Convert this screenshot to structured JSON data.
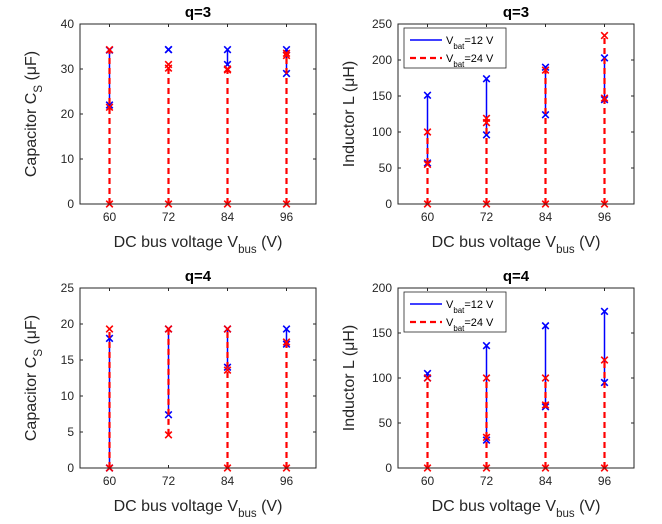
{
  "chart_data": [
    {
      "type": "range",
      "title": "q=3",
      "xlabel": {
        "main": "DC bus voltage V",
        "sub": "bus",
        "unit": " (V)"
      },
      "ylabel": {
        "main": "Capacitor C",
        "sub": "S",
        "unit": " (μF)"
      },
      "categories": [
        "60",
        "72",
        "84",
        "96"
      ],
      "ylim": [
        0,
        40
      ],
      "yticks": [
        0,
        10,
        20,
        30,
        40
      ],
      "legend": null,
      "series": [
        {
          "style": "solid",
          "color": "#0000ff",
          "ranges": [
            [
              22,
              34.2
            ],
            [
              34.3,
              34.3
            ],
            [
              31,
              34.3
            ],
            [
              29,
              34.3
            ]
          ]
        },
        {
          "style": "dashed",
          "color": "#ff0000",
          "ranges": [
            [
              0,
              34.3
            ],
            [
              0,
              31
            ],
            [
              0,
              30
            ],
            [
              0,
              33.5
            ]
          ],
          "extra_points": [
            [
              21.5
            ],
            [
              30.2
            ],
            [
              29.8
            ],
            [
              33
            ]
          ]
        }
      ]
    },
    {
      "type": "range",
      "title": "q=3",
      "xlabel": {
        "main": "DC bus voltage V",
        "sub": "bus",
        "unit": " (V)"
      },
      "ylabel": {
        "main": "Inductor L",
        "sub": "",
        "unit": " (μH)"
      },
      "categories": [
        "60",
        "72",
        "84",
        "96"
      ],
      "ylim": [
        0,
        250
      ],
      "yticks": [
        0,
        50,
        100,
        150,
        200,
        250
      ],
      "legend": {
        "position": "top-left",
        "entries": [
          {
            "main": "V",
            "sub": "bat",
            "rest": "=12 V",
            "style": "solid",
            "color": "#0000ff"
          },
          {
            "main": "V",
            "sub": "bat",
            "rest": "=24 V",
            "style": "dashed",
            "color": "#ff0000"
          }
        ]
      },
      "series": [
        {
          "style": "solid",
          "color": "#0000ff",
          "ranges": [
            [
              57,
              151
            ],
            [
              96,
              174
            ],
            [
              124,
              190
            ],
            [
              145,
              203
            ]
          ]
        },
        {
          "style": "dashed",
          "color": "#ff0000",
          "ranges": [
            [
              0,
              100
            ],
            [
              0,
              119
            ],
            [
              0,
              186
            ],
            [
              0,
              234
            ]
          ],
          "extra_points": [
            [
              55
            ],
            [
              113
            ],
            [],
            [
              147
            ]
          ]
        }
      ]
    },
    {
      "type": "range",
      "title": "q=4",
      "xlabel": {
        "main": "DC bus voltage V",
        "sub": "bus",
        "unit": " (V)"
      },
      "ylabel": {
        "main": "Capacitor C",
        "sub": "S",
        "unit": " (μF)"
      },
      "categories": [
        "60",
        "72",
        "84",
        "96"
      ],
      "ylim": [
        0,
        25
      ],
      "yticks": [
        0,
        5,
        10,
        15,
        20,
        25
      ],
      "legend": null,
      "series": [
        {
          "style": "solid",
          "color": "#0000ff",
          "ranges": [
            [
              0,
              18
            ],
            [
              7.4,
              19.3
            ],
            [
              14,
              19.3
            ],
            [
              17.2,
              19.3
            ]
          ]
        },
        {
          "style": "dashed",
          "color": "#ff0000",
          "ranges": [
            [
              0,
              19.3
            ],
            [
              4.6,
              19.3
            ],
            [
              0,
              19.3
            ],
            [
              0,
              17.5
            ]
          ],
          "extra_points": [
            [],
            [],
            [
              13.6
            ],
            []
          ]
        }
      ]
    },
    {
      "type": "range",
      "title": "q=4",
      "xlabel": {
        "main": "DC bus voltage V",
        "sub": "bus",
        "unit": " (V)"
      },
      "ylabel": {
        "main": "Inductor L",
        "sub": "",
        "unit": " (μH)"
      },
      "categories": [
        "60",
        "72",
        "84",
        "96"
      ],
      "ylim": [
        0,
        200
      ],
      "yticks": [
        0,
        50,
        100,
        150,
        200
      ],
      "legend": {
        "position": "top-left",
        "entries": [
          {
            "main": "V",
            "sub": "bat",
            "rest": "=12 V",
            "style": "solid",
            "color": "#0000ff"
          },
          {
            "main": "V",
            "sub": "bat",
            "rest": "=24 V",
            "style": "dashed",
            "color": "#ff0000"
          }
        ]
      },
      "series": [
        {
          "style": "solid",
          "color": "#0000ff",
          "ranges": [
            [
              100,
              105
            ],
            [
              31,
              136
            ],
            [
              68,
              158
            ],
            [
              95,
              174
            ]
          ]
        },
        {
          "style": "dashed",
          "color": "#ff0000",
          "ranges": [
            [
              0,
              100
            ],
            [
              0,
              100
            ],
            [
              0,
              100
            ],
            [
              0,
              120
            ]
          ],
          "extra_points": [
            [],
            [
              34
            ],
            [
              70
            ],
            []
          ]
        }
      ]
    }
  ]
}
